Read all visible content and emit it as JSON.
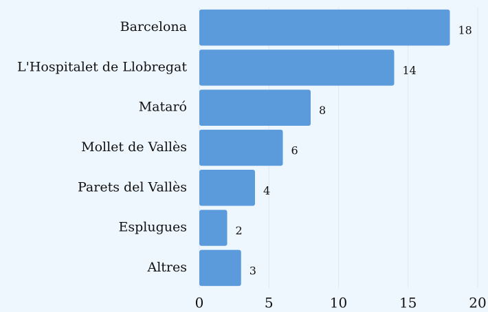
{
  "chart_data": {
    "type": "barh",
    "categories": [
      "Barcelona",
      "L'Hospitalet de Llobregat",
      "Mataró",
      "Mollet de Vallès",
      "Parets del Vallès",
      "Esplugues",
      "Altres"
    ],
    "values": [
      18,
      14,
      8,
      6,
      4,
      2,
      3
    ],
    "color": "#5b9bdb",
    "xlim": [
      0,
      20
    ],
    "xticks": [
      0,
      5,
      10,
      15,
      20
    ],
    "grid": true
  }
}
